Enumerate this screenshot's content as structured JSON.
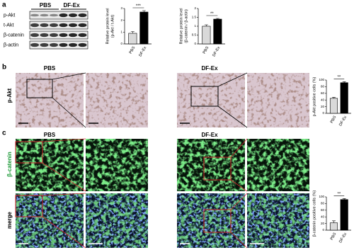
{
  "panel_labels": [
    "a",
    "b",
    "c"
  ],
  "blot": {
    "columns": [
      "PBS",
      "DF-Ex"
    ],
    "rows": [
      "p-Akt",
      "t-Akt",
      "β-catenin",
      "β-actin"
    ]
  },
  "panel_b": {
    "columns": [
      "PBS",
      "DF-Ex"
    ],
    "row": "p-Akt"
  },
  "panel_c": {
    "columns": [
      "PBS",
      "DF-Ex"
    ],
    "rows": [
      "β-catenin",
      "merge"
    ]
  },
  "chart_data": [
    {
      "type": "bar",
      "ylabel": [
        "Relative protein level",
        "(p-Akt / t-Akt)"
      ],
      "categories": [
        "PBS",
        "DF-Ex"
      ],
      "values": [
        0.9,
        2.7
      ],
      "errors": [
        0.15,
        0.12
      ],
      "colors": [
        "#d9d9d9",
        "#000000"
      ],
      "ylim": [
        0,
        3
      ],
      "yticks": [
        0,
        1,
        2,
        3
      ],
      "significance": "***"
    },
    {
      "type": "bar",
      "ylabel": [
        "Relative protein level",
        "(β-catenin / β-actin)"
      ],
      "categories": [
        "PBS",
        "DF-Ex"
      ],
      "values": [
        1.0,
        1.4
      ],
      "errors": [
        0.08,
        0.04
      ],
      "colors": [
        "#d9d9d9",
        "#000000"
      ],
      "ylim": [
        0,
        2
      ],
      "yticks": [
        0,
        0.5,
        1,
        1.5,
        2
      ],
      "significance": "**"
    },
    {
      "type": "bar",
      "ylabel": [
        "p-Akt positive cells (%)"
      ],
      "categories": [
        "PBS",
        "DF-Ex"
      ],
      "values": [
        45,
        92
      ],
      "errors": [
        3,
        3
      ],
      "colors": [
        "#d9d9d9",
        "#000000"
      ],
      "ylim": [
        0,
        100
      ],
      "yticks": [
        0,
        20,
        40,
        60,
        80,
        100
      ],
      "significance": "**"
    },
    {
      "type": "bar",
      "ylabel": [
        "β-catenin positive cells (%)"
      ],
      "categories": [
        "PBS",
        "DF-Ex"
      ],
      "values": [
        22,
        92
      ],
      "errors": [
        6,
        3
      ],
      "colors": [
        "#d9d9d9",
        "#000000"
      ],
      "ylim": [
        0,
        100
      ],
      "yticks": [
        0,
        20,
        40,
        60,
        80,
        100
      ],
      "significance": "**"
    }
  ]
}
